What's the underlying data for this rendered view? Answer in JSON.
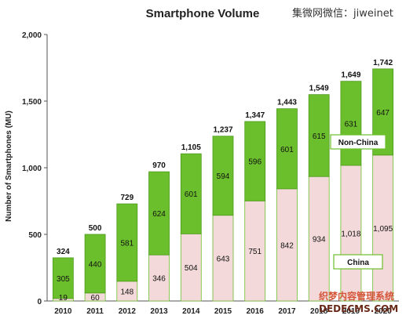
{
  "header": {
    "note": "集微网微信：jiweinet"
  },
  "watermark": {
    "line1": "织梦内容管理系统",
    "line2": "DEDECMS.COM"
  },
  "chart_data": {
    "type": "bar",
    "stacked": true,
    "title": "Smartphone Volume",
    "xlabel": "",
    "ylabel": "Number of Smartphones (MU)",
    "ylim": [
      0,
      2000
    ],
    "yticks": [
      0,
      500,
      1000,
      1500,
      2000
    ],
    "ytick_labels": [
      "0",
      "500",
      "1,000",
      "1,500",
      "2,000"
    ],
    "categories": [
      "2010",
      "2011",
      "2012",
      "2013",
      "2014",
      "2015",
      "2016",
      "2017",
      "2018",
      "2019",
      "2020"
    ],
    "series": [
      {
        "name": "China",
        "color": "#f3d9d9",
        "values": [
          19,
          60,
          148,
          346,
          504,
          643,
          751,
          842,
          934,
          1018,
          1095
        ],
        "labels": [
          "19",
          "60",
          "148",
          "346",
          "504",
          "643",
          "751",
          "842",
          "934",
          "1,018",
          "1,095"
        ]
      },
      {
        "name": "Non-China",
        "color": "#6cbf2c",
        "values": [
          305,
          440,
          581,
          624,
          601,
          594,
          596,
          601,
          615,
          631,
          647
        ],
        "labels": [
          "305",
          "440",
          "581",
          "624",
          "601",
          "594",
          "596",
          "601",
          "615",
          "631",
          "647"
        ]
      }
    ],
    "totals": [
      324,
      500,
      729,
      970,
      1105,
      1237,
      1347,
      1443,
      1549,
      1649,
      1742
    ],
    "total_labels": [
      "324",
      "500",
      "729",
      "970",
      "1,105",
      "1,237",
      "1,347",
      "1,443",
      "1,549",
      "1,649",
      "1,742"
    ],
    "grid": false
  }
}
